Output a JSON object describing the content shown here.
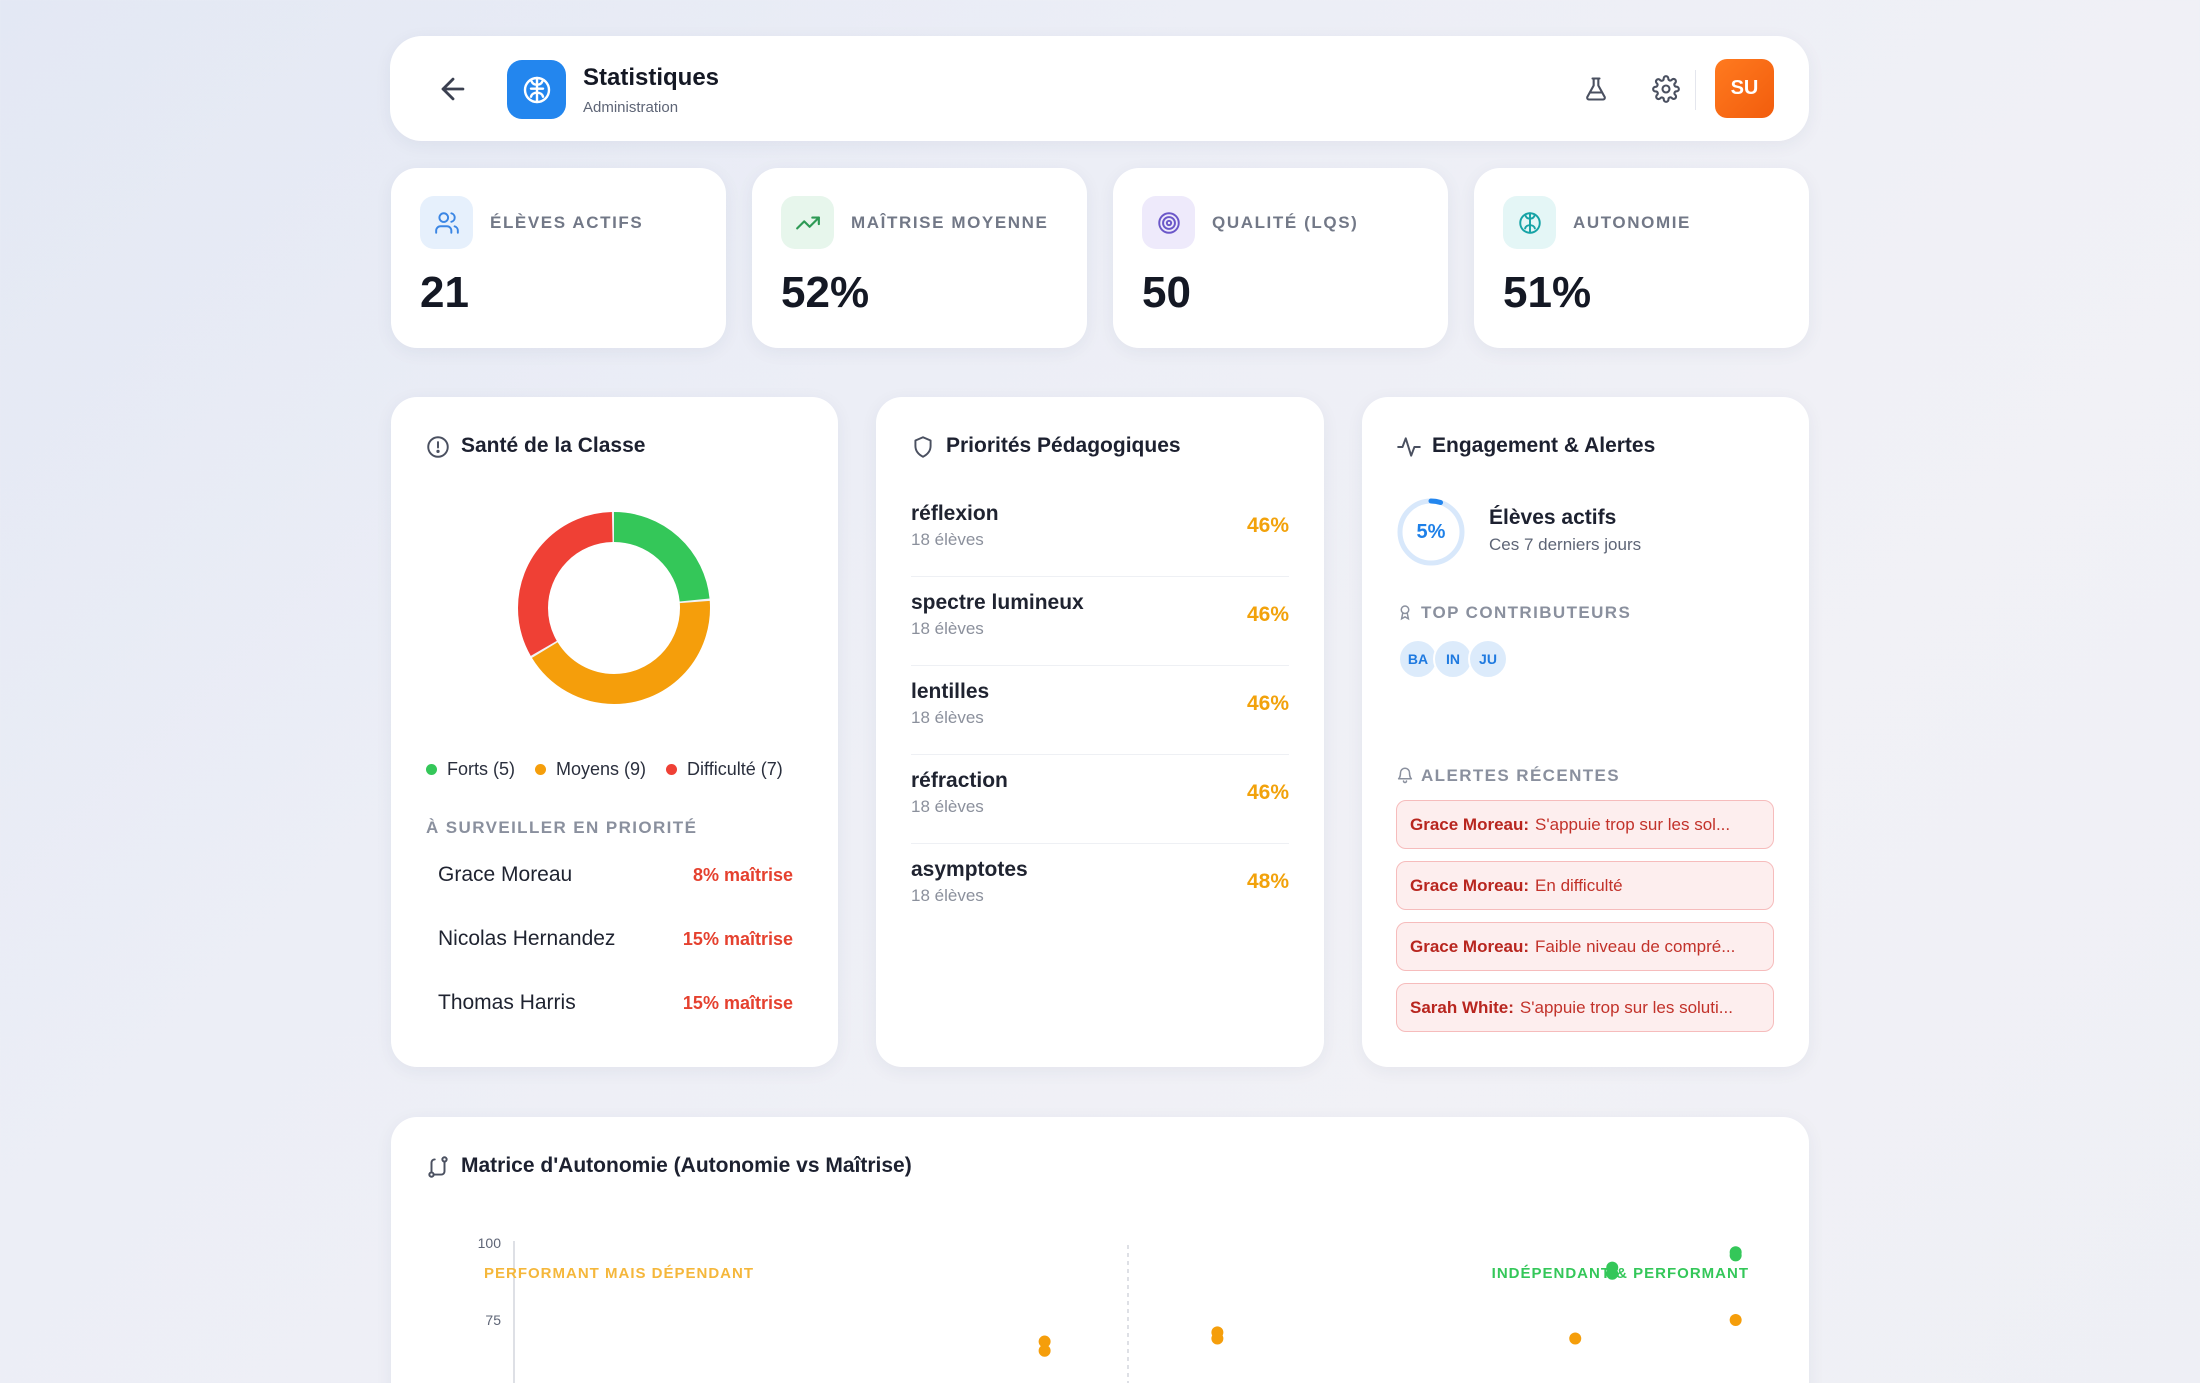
{
  "header": {
    "title": "Statistiques",
    "subtitle": "Administration",
    "avatar_initials": "SU",
    "icons": [
      "back-arrow-icon",
      "brain-icon",
      "flask-icon",
      "gear-icon"
    ]
  },
  "kpis": [
    {
      "label": "ÉLÈVES ACTIFS",
      "value": "21",
      "icon": "users-icon",
      "color": "#3b86e4",
      "bg": "#e6f0fc"
    },
    {
      "label": "MAÎTRISE MOYENNE",
      "value": "52%",
      "icon": "trending-up-icon",
      "color": "#2e9a55",
      "bg": "#e7f6ec"
    },
    {
      "label": "QUALITÉ (LQS)",
      "value": "50",
      "icon": "target-icon",
      "color": "#6b57c9",
      "bg": "#eeeafb"
    },
    {
      "label": "AUTONOMIE",
      "value": "51%",
      "icon": "brain-icon",
      "color": "#16a3a6",
      "bg": "#e4f6f6"
    }
  ],
  "sante": {
    "title": "Santé de la Classe",
    "legend": [
      {
        "label": "Forts (5)",
        "color": "#34c759",
        "count": 5
      },
      {
        "label": "Moyens (9)",
        "color": "#f59e0b",
        "count": 9
      },
      {
        "label": "Difficulté (7)",
        "color": "#ef4035",
        "count": 7
      }
    ],
    "watch_title": "À SURVEILLER EN PRIORITÉ",
    "watch": [
      {
        "name": "Grace Moreau",
        "score": "8% maîtrise"
      },
      {
        "name": "Nicolas Hernandez",
        "score": "15% maîtrise"
      },
      {
        "name": "Thomas Harris",
        "score": "15% maîtrise"
      }
    ]
  },
  "priorites": {
    "title": "Priorités Pédagogiques",
    "topics": [
      {
        "name": "réflexion",
        "count": "18 élèves",
        "pct": "46%"
      },
      {
        "name": "spectre lumineux",
        "count": "18 élèves",
        "pct": "46%"
      },
      {
        "name": "lentilles",
        "count": "18 élèves",
        "pct": "46%"
      },
      {
        "name": "réfraction",
        "count": "18 élèves",
        "pct": "46%"
      },
      {
        "name": "asymptotes",
        "count": "18 élèves",
        "pct": "48%"
      }
    ]
  },
  "engagement": {
    "title": "Engagement & Alertes",
    "ring_value": "5%",
    "ring_fraction": 0.05,
    "head": "Élèves actifs",
    "sub": "Ces 7 derniers jours",
    "contrib_title": "TOP CONTRIBUTEURS",
    "contributors": [
      "BA",
      "IN",
      "JU"
    ],
    "alerts_title": "ALERTES RÉCENTES",
    "alerts": [
      {
        "name": "Grace Moreau:",
        "text": "S'appuie trop sur les sol..."
      },
      {
        "name": "Grace Moreau:",
        "text": "En difficulté"
      },
      {
        "name": "Grace Moreau:",
        "text": "Faible niveau de compré..."
      },
      {
        "name": "Sarah White:",
        "text": "S'appuie trop sur les soluti..."
      }
    ]
  },
  "chart_data": {
    "type": "scatter",
    "title": "Matrice d'Autonomie (Autonomie vs Maîtrise)",
    "ylim": [
      0,
      100
    ],
    "xlim": [
      0,
      100
    ],
    "yticks": [
      "100",
      "75"
    ],
    "quadrants": [
      {
        "label": "PERFORMANT MAIS DÉPENDANT",
        "color": "#f5b73b"
      },
      {
        "label": "INDÉPENDANT & PERFORMANT",
        "color": "#34c759"
      }
    ],
    "points": [
      {
        "x": 99,
        "y": 97,
        "color": "#34c759"
      },
      {
        "x": 99,
        "y": 96,
        "color": "#34c759"
      },
      {
        "x": 89,
        "y": 92,
        "color": "#34c759"
      },
      {
        "x": 89,
        "y": 90,
        "color": "#34c759"
      },
      {
        "x": 43,
        "y": 68,
        "color": "#f59e0b"
      },
      {
        "x": 43,
        "y": 65,
        "color": "#f59e0b"
      },
      {
        "x": 57,
        "y": 71,
        "color": "#f59e0b"
      },
      {
        "x": 57,
        "y": 69,
        "color": "#f59e0b"
      },
      {
        "x": 86,
        "y": 69,
        "color": "#f59e0b"
      },
      {
        "x": 99,
        "y": 75,
        "color": "#f59e0b"
      }
    ]
  }
}
